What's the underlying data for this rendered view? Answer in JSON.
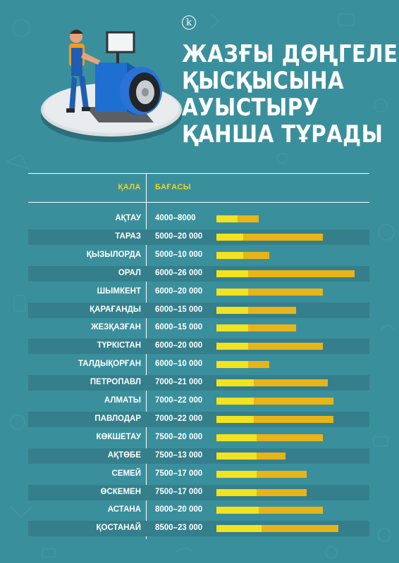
{
  "logo": {
    "letter": "k"
  },
  "title": {
    "lines": [
      "ЖАЗҒЫ ДӨҢГЕЛЕКТІ",
      "ҚЫСҚЫСЫНА",
      "АУЫСТЫРУ",
      "ҚАНША ТҰРАДЫ"
    ]
  },
  "table": {
    "city_header": "ҚАЛА",
    "price_header": "БАҒАСЫ"
  },
  "colors": {
    "background": "#3a8f9c",
    "header_accent": "#f1d61f",
    "bar_min": "#f3e21e",
    "bar_max": "#e8b417"
  },
  "chart_data": {
    "type": "bar",
    "orientation": "horizontal-range",
    "value_unit": "tenge",
    "categories": [
      "АҚТАУ",
      "ТАРАЗ",
      "ҚЫЗЫЛОРДА",
      "ОРАЛ",
      "ШЫМКЕНТ",
      "ҚАРАҒАНДЫ",
      "ЖЕЗҚАЗҒАН",
      "ТҮРКІСТАН",
      "ТАЛДЫҚОРҒАН",
      "ПЕТРОПАВЛ",
      "АЛМАТЫ",
      "ПАВЛОДАР",
      "КӨКШЕТАУ",
      "АҚТӨБЕ",
      "СЕМЕЙ",
      "ӨСКЕМЕН",
      "АСТАНА",
      "ҚОСТАНАЙ"
    ],
    "price_labels": [
      "4000–8000",
      "5000–20 000",
      "5000–10 000",
      "6000–26 000",
      "6000–20 000",
      "6000–15 000",
      "6000–15 000",
      "6000–20 000",
      "6000–10 000",
      "7000–21 000",
      "7000–22 000",
      "7000–22 000",
      "7500–20 000",
      "7500–13 000",
      "7500–17 000",
      "7500–17 000",
      "8000–20 000",
      "8500–23 000"
    ],
    "series": [
      {
        "values": [
          4000,
          5000,
          5000,
          6000,
          6000,
          6000,
          6000,
          6000,
          6000,
          7000,
          7000,
          7000,
          7500,
          7500,
          7500,
          7500,
          8000,
          8500
        ]
      },
      {
        "values": [
          8000,
          20000,
          10000,
          26000,
          20000,
          15000,
          15000,
          20000,
          10000,
          21000,
          22000,
          22000,
          20000,
          13000,
          17000,
          17000,
          20000,
          23000
        ]
      }
    ],
    "xlim": [
      0,
      26000
    ]
  }
}
